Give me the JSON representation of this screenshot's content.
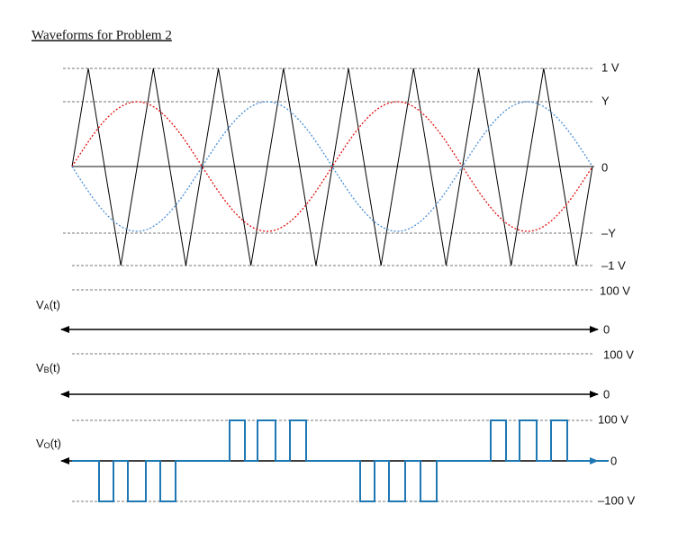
{
  "header": {
    "title": "Waveforms for Problem 2"
  },
  "panel_top": {
    "labels": [
      "1 V",
      "Y",
      "0",
      "–Y",
      "–1 V"
    ]
  },
  "panel_a": {
    "name": {
      "base": "V",
      "sub": "A",
      "suffix": "(t)"
    },
    "top_label": "100 V",
    "zero_label": "0"
  },
  "panel_b": {
    "name": {
      "base": "V",
      "sub": "B",
      "suffix": "(t)"
    },
    "top_label": "100 V",
    "zero_label": "0"
  },
  "panel_o": {
    "name": {
      "base": "V",
      "sub": "O",
      "suffix": "(t)"
    },
    "top_label": "100 V",
    "zero_label": "0",
    "bottom_label": "–100 V"
  }
}
